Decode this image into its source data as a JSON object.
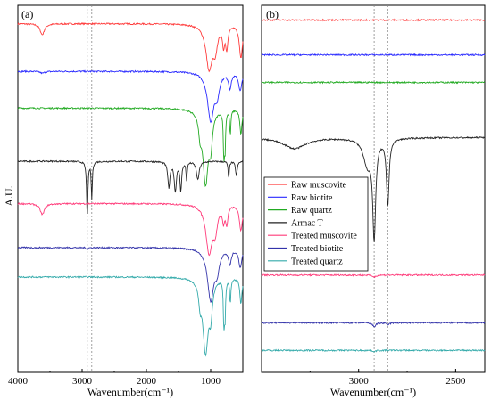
{
  "figure": {
    "ylabel": "A.U.",
    "panel_a": {
      "label": "(a)",
      "xlabel": "Wavenumber(cm⁻¹)"
    },
    "panel_b": {
      "label": "(b)",
      "xlabel": "Wavenumber(cm⁻¹)"
    }
  },
  "chart_data": [
    {
      "type": "line",
      "panel": "(a)",
      "xlabel": "Wavenumber(cm⁻¹)",
      "ylabel": "A.U.",
      "xlim": [
        4000,
        500
      ],
      "xticks": [
        4000,
        3000,
        2000,
        1000
      ],
      "grid": false,
      "reference_lines_x": [
        2920,
        2850
      ],
      "series": [
        {
          "name": "Raw muscovite",
          "color": "#ff3b3b",
          "baseline": 0.95,
          "peaks": [
            [
              3620,
              0.03,
              40
            ],
            [
              1025,
              0.12,
              60
            ],
            [
              930,
              0.06,
              40
            ],
            [
              800,
              0.05,
              20
            ],
            [
              750,
              0.06,
              20
            ],
            [
              530,
              0.09,
              30
            ]
          ]
        },
        {
          "name": "Raw biotite",
          "color": "#2a2aff",
          "baseline": 0.82,
          "peaks": [
            [
              3620,
              0.005,
              40
            ],
            [
              1000,
              0.13,
              60
            ],
            [
              900,
              0.05,
              40
            ],
            [
              700,
              0.04,
              25
            ],
            [
              540,
              0.05,
              30
            ]
          ]
        },
        {
          "name": "Raw quartz",
          "color": "#22aa22",
          "baseline": 0.72,
          "peaks": [
            [
              1165,
              0.05,
              25
            ],
            [
              1080,
              0.2,
              50
            ],
            [
              1000,
              0.08,
              30
            ],
            [
              795,
              0.12,
              10
            ],
            [
              777,
              0.1,
              10
            ],
            [
              695,
              0.07,
              10
            ],
            [
              530,
              0.07,
              20
            ]
          ]
        },
        {
          "name": "Armac T",
          "color": "#222222",
          "baseline": 0.575,
          "peaks": [
            [
              2920,
              0.15,
              12
            ],
            [
              2850,
              0.1,
              10
            ],
            [
              1650,
              0.07,
              20
            ],
            [
              1550,
              0.08,
              20
            ],
            [
              1465,
              0.08,
              15
            ],
            [
              1375,
              0.05,
              10
            ],
            [
              1200,
              0.05,
              25
            ],
            [
              720,
              0.05,
              10
            ],
            [
              600,
              0.04,
              15
            ]
          ]
        },
        {
          "name": "Treated muscovite",
          "color": "#ff3b7a",
          "baseline": 0.46,
          "peaks": [
            [
              3620,
              0.03,
              40
            ],
            [
              1025,
              0.13,
              60
            ],
            [
              930,
              0.06,
              40
            ],
            [
              800,
              0.04,
              20
            ],
            [
              750,
              0.05,
              20
            ],
            [
              530,
              0.07,
              30
            ]
          ]
        },
        {
          "name": "Treated biotite",
          "color": "#3333aa",
          "baseline": 0.34,
          "peaks": [
            [
              2920,
              0.005,
              12
            ],
            [
              1000,
              0.14,
              60
            ],
            [
              900,
              0.05,
              40
            ],
            [
              700,
              0.04,
              25
            ],
            [
              540,
              0.05,
              30
            ]
          ]
        },
        {
          "name": "Treated quartz",
          "color": "#33aaaa",
          "baseline": 0.26,
          "peaks": [
            [
              1165,
              0.05,
              25
            ],
            [
              1080,
              0.2,
              50
            ],
            [
              1000,
              0.08,
              30
            ],
            [
              795,
              0.12,
              10
            ],
            [
              777,
              0.1,
              10
            ],
            [
              695,
              0.07,
              10
            ],
            [
              530,
              0.07,
              20
            ]
          ]
        }
      ]
    },
    {
      "type": "line",
      "panel": "(b)",
      "xlabel": "Wavenumber(cm⁻¹)",
      "ylabel": "",
      "xlim": [
        3500,
        2350
      ],
      "xticks": [
        3000,
        2500
      ],
      "grid": false,
      "legend_position": "left-center",
      "reference_lines_x": [
        2920,
        2850
      ],
      "series": [
        {
          "name": "Raw muscovite",
          "color": "#ff3b3b",
          "baseline": 0.96,
          "peaks": []
        },
        {
          "name": "Raw biotite",
          "color": "#2a2aff",
          "baseline": 0.865,
          "peaks": []
        },
        {
          "name": "Raw quartz",
          "color": "#22aa22",
          "baseline": 0.79,
          "peaks": []
        },
        {
          "name": "Armac T",
          "color": "#222222",
          "baseline": 0.64,
          "peaks": [
            [
              3330,
              0.03,
              70
            ],
            [
              2955,
              0.07,
              25
            ],
            [
              2920,
              0.26,
              9
            ],
            [
              2850,
              0.18,
              8
            ]
          ]
        },
        {
          "name": "Treated muscovite",
          "color": "#ff3b7a",
          "baseline": 0.265,
          "peaks": [
            [
              2920,
              0.005,
              10
            ]
          ]
        },
        {
          "name": "Treated biotite",
          "color": "#3333aa",
          "baseline": 0.135,
          "peaks": [
            [
              2920,
              0.01,
              10
            ],
            [
              2850,
              0.005,
              10
            ]
          ]
        },
        {
          "name": "Treated quartz",
          "color": "#33aaaa",
          "baseline": 0.06,
          "peaks": [
            [
              2920,
              0.003,
              10
            ]
          ]
        }
      ]
    }
  ]
}
